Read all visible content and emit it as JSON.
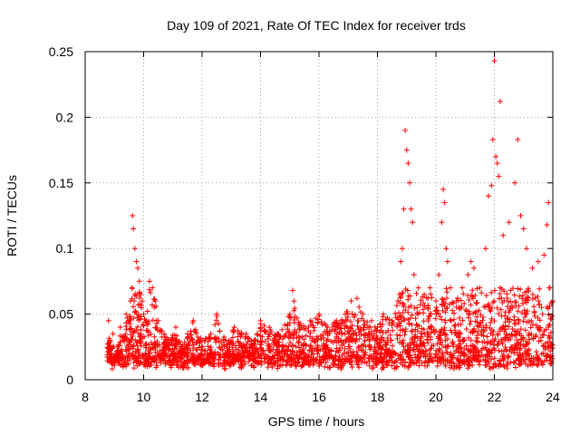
{
  "chart_data": {
    "type": "scatter",
    "title": "Day 109 of 2021, Rate Of TEC Index for receiver trds",
    "xlabel": "GPS time / hours",
    "ylabel": "ROTI / TECUs",
    "xlim": [
      8,
      24
    ],
    "ylim": [
      0,
      0.25
    ],
    "xticks": [
      8,
      10,
      12,
      14,
      16,
      18,
      20,
      22,
      24
    ],
    "yticks": [
      "0",
      "0.05",
      "0.1",
      "0.15",
      "0.2",
      "0.25"
    ],
    "grid": true,
    "marker": "+",
    "color": "#ff0000",
    "series": [
      {
        "name": "ROTI",
        "points": [
          [
            8.8,
            0.045
          ],
          [
            8.85,
            0.03
          ],
          [
            8.9,
            0.02
          ],
          [
            8.95,
            0.035
          ],
          [
            9.0,
            0.015
          ],
          [
            9.1,
            0.025
          ],
          [
            9.2,
            0.04
          ],
          [
            9.3,
            0.03
          ],
          [
            9.4,
            0.05
          ],
          [
            9.5,
            0.045
          ],
          [
            9.55,
            0.06
          ],
          [
            9.6,
            0.07
          ],
          [
            9.62,
            0.125
          ],
          [
            9.65,
            0.115
          ],
          [
            9.7,
            0.1
          ],
          [
            9.75,
            0.09
          ],
          [
            9.8,
            0.085
          ],
          [
            9.85,
            0.075
          ],
          [
            9.9,
            0.065
          ],
          [
            9.95,
            0.06
          ],
          [
            10.0,
            0.05
          ],
          [
            10.1,
            0.045
          ],
          [
            10.2,
            0.075
          ],
          [
            10.3,
            0.07
          ],
          [
            10.4,
            0.06
          ],
          [
            10.5,
            0.045
          ],
          [
            10.7,
            0.035
          ],
          [
            10.9,
            0.03
          ],
          [
            11.1,
            0.04
          ],
          [
            11.3,
            0.025
          ],
          [
            11.5,
            0.035
          ],
          [
            11.7,
            0.045
          ],
          [
            12.0,
            0.03
          ],
          [
            12.3,
            0.035
          ],
          [
            12.5,
            0.05
          ],
          [
            12.8,
            0.03
          ],
          [
            13.1,
            0.04
          ],
          [
            13.5,
            0.035
          ],
          [
            13.8,
            0.03
          ],
          [
            14.0,
            0.045
          ],
          [
            14.3,
            0.04
          ],
          [
            14.6,
            0.035
          ],
          [
            15.0,
            0.05
          ],
          [
            15.1,
            0.068
          ],
          [
            15.4,
            0.04
          ],
          [
            15.7,
            0.045
          ],
          [
            16.0,
            0.05
          ],
          [
            16.3,
            0.04
          ],
          [
            16.6,
            0.045
          ],
          [
            16.9,
            0.05
          ],
          [
            17.1,
            0.06
          ],
          [
            17.3,
            0.062
          ],
          [
            17.5,
            0.05
          ],
          [
            17.8,
            0.045
          ],
          [
            18.0,
            0.04
          ],
          [
            18.2,
            0.05
          ],
          [
            18.5,
            0.045
          ],
          [
            18.7,
            0.06
          ],
          [
            18.8,
            0.09
          ],
          [
            18.85,
            0.1
          ],
          [
            18.9,
            0.13
          ],
          [
            18.95,
            0.19
          ],
          [
            19.0,
            0.175
          ],
          [
            19.05,
            0.165
          ],
          [
            19.1,
            0.15
          ],
          [
            19.15,
            0.13
          ],
          [
            19.2,
            0.12
          ],
          [
            19.25,
            0.08
          ],
          [
            19.4,
            0.07
          ],
          [
            19.6,
            0.065
          ],
          [
            19.8,
            0.07
          ],
          [
            20.0,
            0.06
          ],
          [
            20.1,
            0.08
          ],
          [
            20.2,
            0.12
          ],
          [
            20.25,
            0.145
          ],
          [
            20.3,
            0.135
          ],
          [
            20.35,
            0.1
          ],
          [
            20.4,
            0.09
          ],
          [
            20.5,
            0.07
          ],
          [
            20.7,
            0.06
          ],
          [
            20.9,
            0.07
          ],
          [
            21.1,
            0.08
          ],
          [
            21.2,
            0.09
          ],
          [
            21.3,
            0.085
          ],
          [
            21.5,
            0.07
          ],
          [
            21.7,
            0.1
          ],
          [
            21.8,
            0.14
          ],
          [
            21.9,
            0.148
          ],
          [
            21.95,
            0.183
          ],
          [
            22.0,
            0.243
          ],
          [
            22.05,
            0.17
          ],
          [
            22.1,
            0.165
          ],
          [
            22.15,
            0.155
          ],
          [
            22.2,
            0.212
          ],
          [
            22.3,
            0.11
          ],
          [
            22.5,
            0.12
          ],
          [
            22.7,
            0.15
          ],
          [
            22.8,
            0.183
          ],
          [
            22.9,
            0.125
          ],
          [
            23.0,
            0.115
          ],
          [
            23.1,
            0.1
          ],
          [
            23.3,
            0.085
          ],
          [
            23.5,
            0.09
          ],
          [
            23.7,
            0.095
          ],
          [
            23.8,
            0.118
          ],
          [
            23.85,
            0.135
          ],
          [
            23.9,
            0.07
          ],
          [
            24.0,
            0.06
          ]
        ],
        "extra_points_seed": 109
      }
    ]
  }
}
